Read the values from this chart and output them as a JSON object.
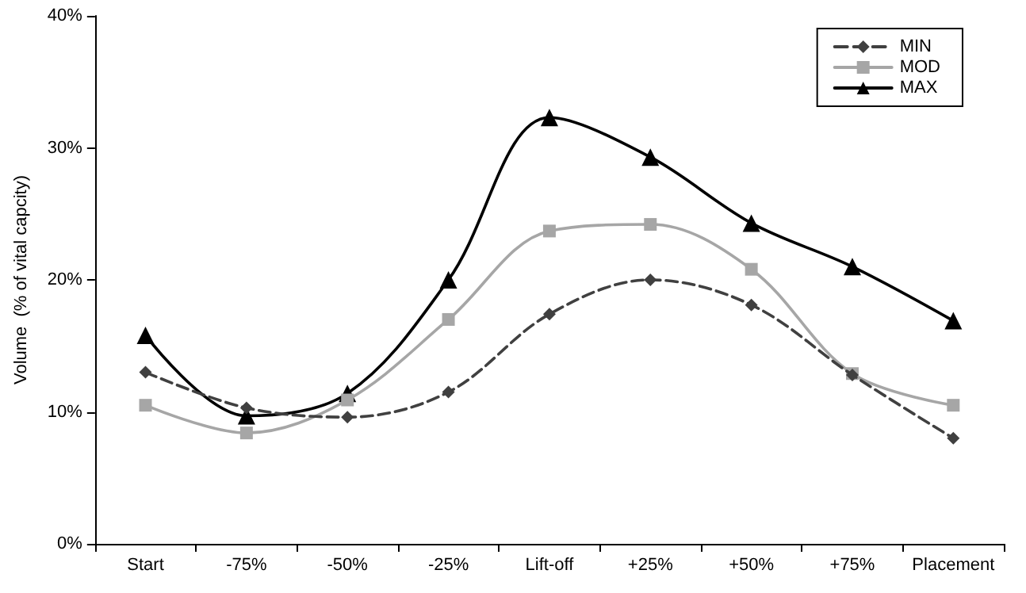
{
  "chart_data": {
    "type": "line",
    "ylabel": "Volume  (% of vital capcity)",
    "categories": [
      "Start",
      "-75%",
      "-50%",
      "-25%",
      "Lift-off",
      "+25%",
      "+50%",
      "+75%",
      "Placement"
    ],
    "series": [
      {
        "name": "MIN",
        "color": "#404040",
        "marker": "diamond",
        "line_style": "dashed",
        "values": [
          13,
          10.3,
          9.6,
          11.5,
          17.4,
          20,
          18.1,
          12.8,
          8
        ]
      },
      {
        "name": "MOD",
        "color": "#a6a6a6",
        "marker": "square",
        "line_style": "solid",
        "values": [
          10.5,
          8.4,
          10.9,
          17,
          23.7,
          24.2,
          20.8,
          12.9,
          10.5
        ]
      },
      {
        "name": "MAX",
        "color": "#000000",
        "marker": "triangle",
        "line_style": "solid",
        "values": [
          15.8,
          9.7,
          11.4,
          20,
          32.3,
          29.3,
          24.3,
          21,
          16.9
        ]
      }
    ],
    "ylim": [
      0,
      40
    ],
    "yticks": [
      {
        "value": 0,
        "label": "0%"
      },
      {
        "value": 10,
        "label": "10%"
      },
      {
        "value": 20,
        "label": "20%"
      },
      {
        "value": 30,
        "label": "30%"
      },
      {
        "value": 40,
        "label": "40%"
      }
    ],
    "grid": false,
    "legend": "top right"
  }
}
